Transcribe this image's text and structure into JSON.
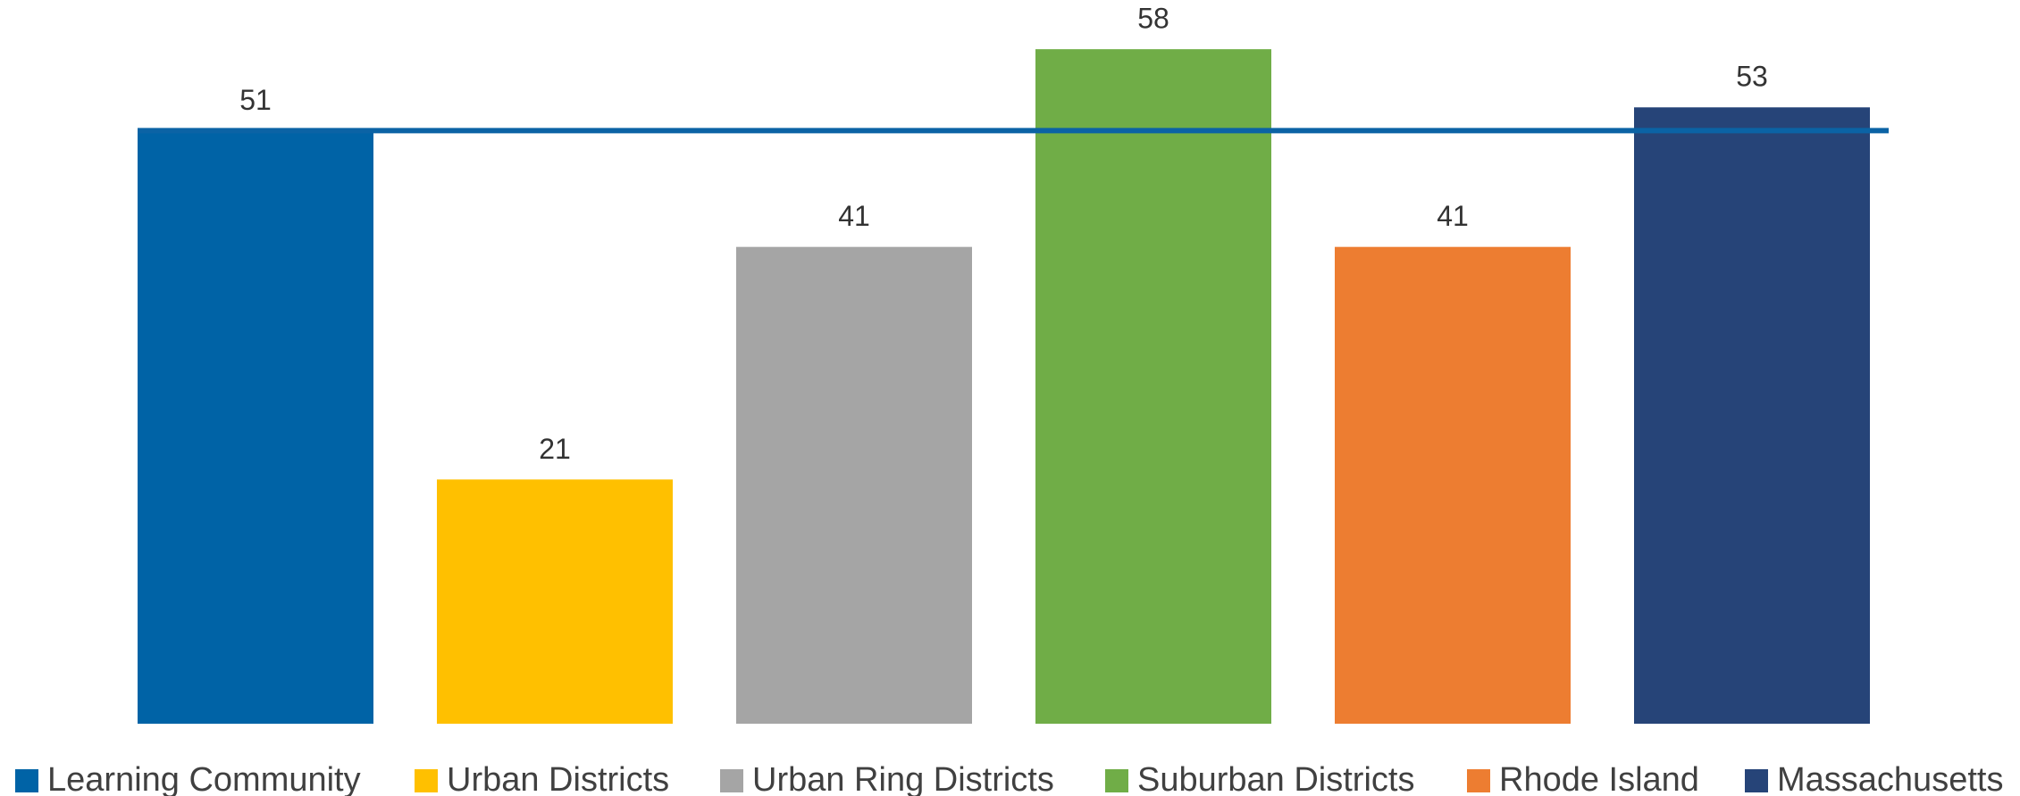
{
  "chart_data": {
    "type": "bar",
    "series": [
      {
        "name": "Learning Community",
        "color": "#0063a6",
        "values": [
          51
        ]
      },
      {
        "name": "Urban Districts",
        "color": "#ffc000",
        "values": [
          21
        ]
      },
      {
        "name": "Urban Ring Districts",
        "color": "#a5a5a5",
        "values": [
          41
        ]
      },
      {
        "name": "Suburban Districts",
        "color": "#70ad47",
        "values": [
          58
        ]
      },
      {
        "name": "Rhode Island",
        "color": "#ed7d31",
        "values": [
          41
        ]
      },
      {
        "name": "Massachusetts",
        "color": "#264478",
        "values": [
          53
        ]
      }
    ],
    "ylim": [
      0,
      62
    ]
  }
}
